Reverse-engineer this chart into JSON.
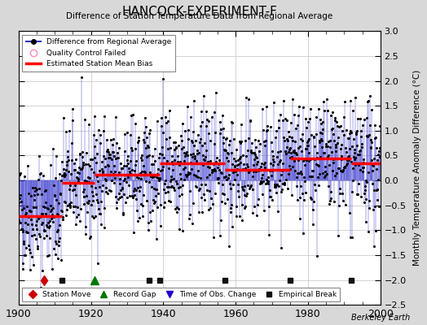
{
  "title": "HANCOCK-EXPERIMENT-F",
  "subtitle": "Difference of Station Temperature Data from Regional Average",
  "ylabel": "Monthly Temperature Anomaly Difference (°C)",
  "xlabel_ticks": [
    1900,
    1920,
    1940,
    1960,
    1980,
    2000
  ],
  "ylim": [
    -2.5,
    3.0
  ],
  "xlim": [
    1900,
    2000
  ],
  "yticks": [
    -2.5,
    -2,
    -1.5,
    -1,
    -0.5,
    0,
    0.5,
    1,
    1.5,
    2,
    2.5,
    3
  ],
  "fig_bg_color": "#d8d8d8",
  "plot_bg_color": "#ffffff",
  "line_color": "#3333cc",
  "dot_color": "#000000",
  "bias_color": "#ff0000",
  "station_move_color": "#cc0000",
  "record_gap_color": "#007700",
  "obs_change_color": "#2200cc",
  "empirical_break_color": "#111111",
  "seed": 42,
  "start_year": 1900,
  "end_year": 2000,
  "bias_segments": [
    {
      "start": 1900,
      "end": 1912,
      "value": -0.72
    },
    {
      "start": 1912,
      "end": 1921,
      "value": -0.05
    },
    {
      "start": 1921,
      "end": 1939,
      "value": 0.12
    },
    {
      "start": 1939,
      "end": 1957,
      "value": 0.35
    },
    {
      "start": 1957,
      "end": 1975,
      "value": 0.22
    },
    {
      "start": 1975,
      "end": 1992,
      "value": 0.45
    },
    {
      "start": 1992,
      "end": 2000,
      "value": 0.35
    }
  ],
  "station_moves": [
    1907
  ],
  "record_gaps": [
    1921
  ],
  "obs_changes": [],
  "empirical_breaks": [
    1912,
    1936,
    1939,
    1957,
    1975,
    1992
  ],
  "marker_y": -2.0,
  "watermark": "Berkeley Earth"
}
